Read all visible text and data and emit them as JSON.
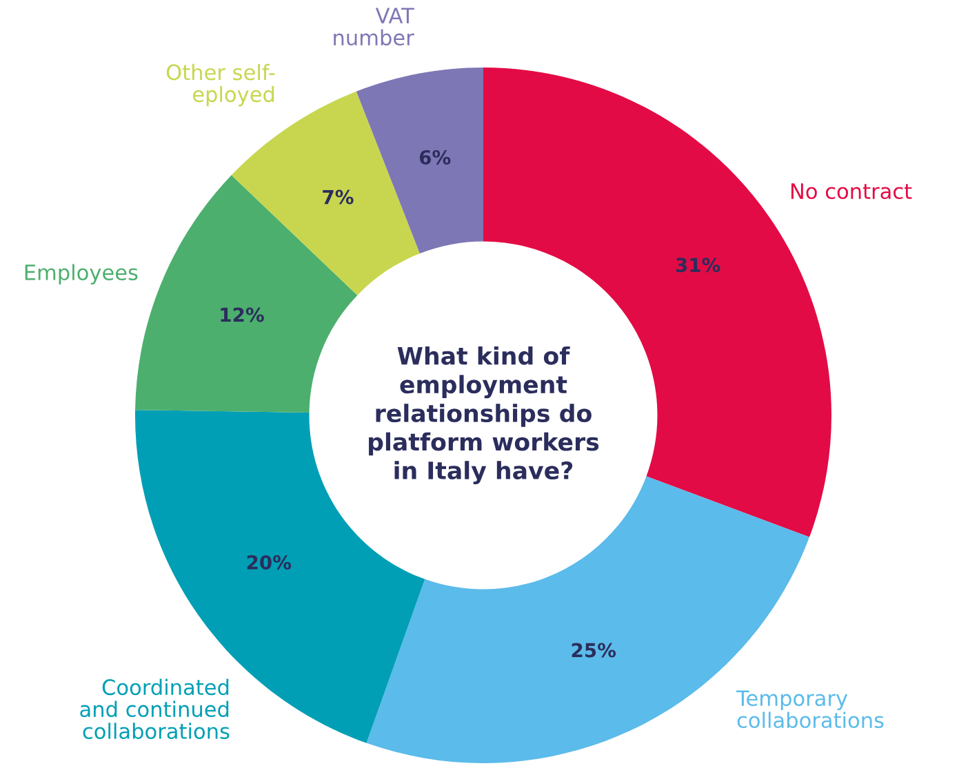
{
  "chart_data": {
    "type": "donut",
    "title": "What kind of\nemployment\nrelationships do\nplatform workers\nin Italy have?",
    "categories": [
      "No contract",
      "Temporary\ncollaborations",
      "Coordinated\nand continued\ncollaborations",
      "Employees",
      "Other self-\neployed",
      "VAT\nnumber"
    ],
    "values": [
      31,
      25,
      20,
      12,
      7,
      6
    ],
    "value_labels": [
      "31%",
      "25%",
      "20%",
      "12%",
      "7%",
      "6%"
    ],
    "colors": [
      "#e30b45",
      "#5bbbea",
      "#009fb5",
      "#4caf6e",
      "#c8d64f",
      "#7e77b5"
    ],
    "legend": false
  }
}
